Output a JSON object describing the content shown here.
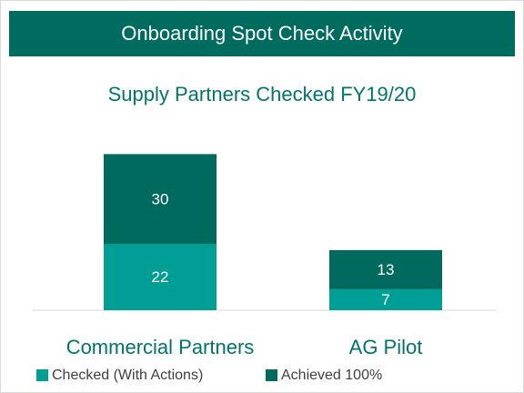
{
  "chart_data": {
    "type": "stacked_bar",
    "title": "Onboarding Spot Check Activity",
    "subtitle": "Supply Partners Checked FY19/20",
    "categories": [
      "Commercial Partners",
      "AG Pilot"
    ],
    "series": [
      {
        "name": "Checked (With Actions)",
        "color": "#009e94",
        "values": [
          22,
          7
        ]
      },
      {
        "name": "Achieved 100%",
        "color": "#006a5f",
        "values": [
          30,
          13
        ]
      }
    ],
    "header_color": "#006b5f",
    "text_color": "#00766b"
  }
}
